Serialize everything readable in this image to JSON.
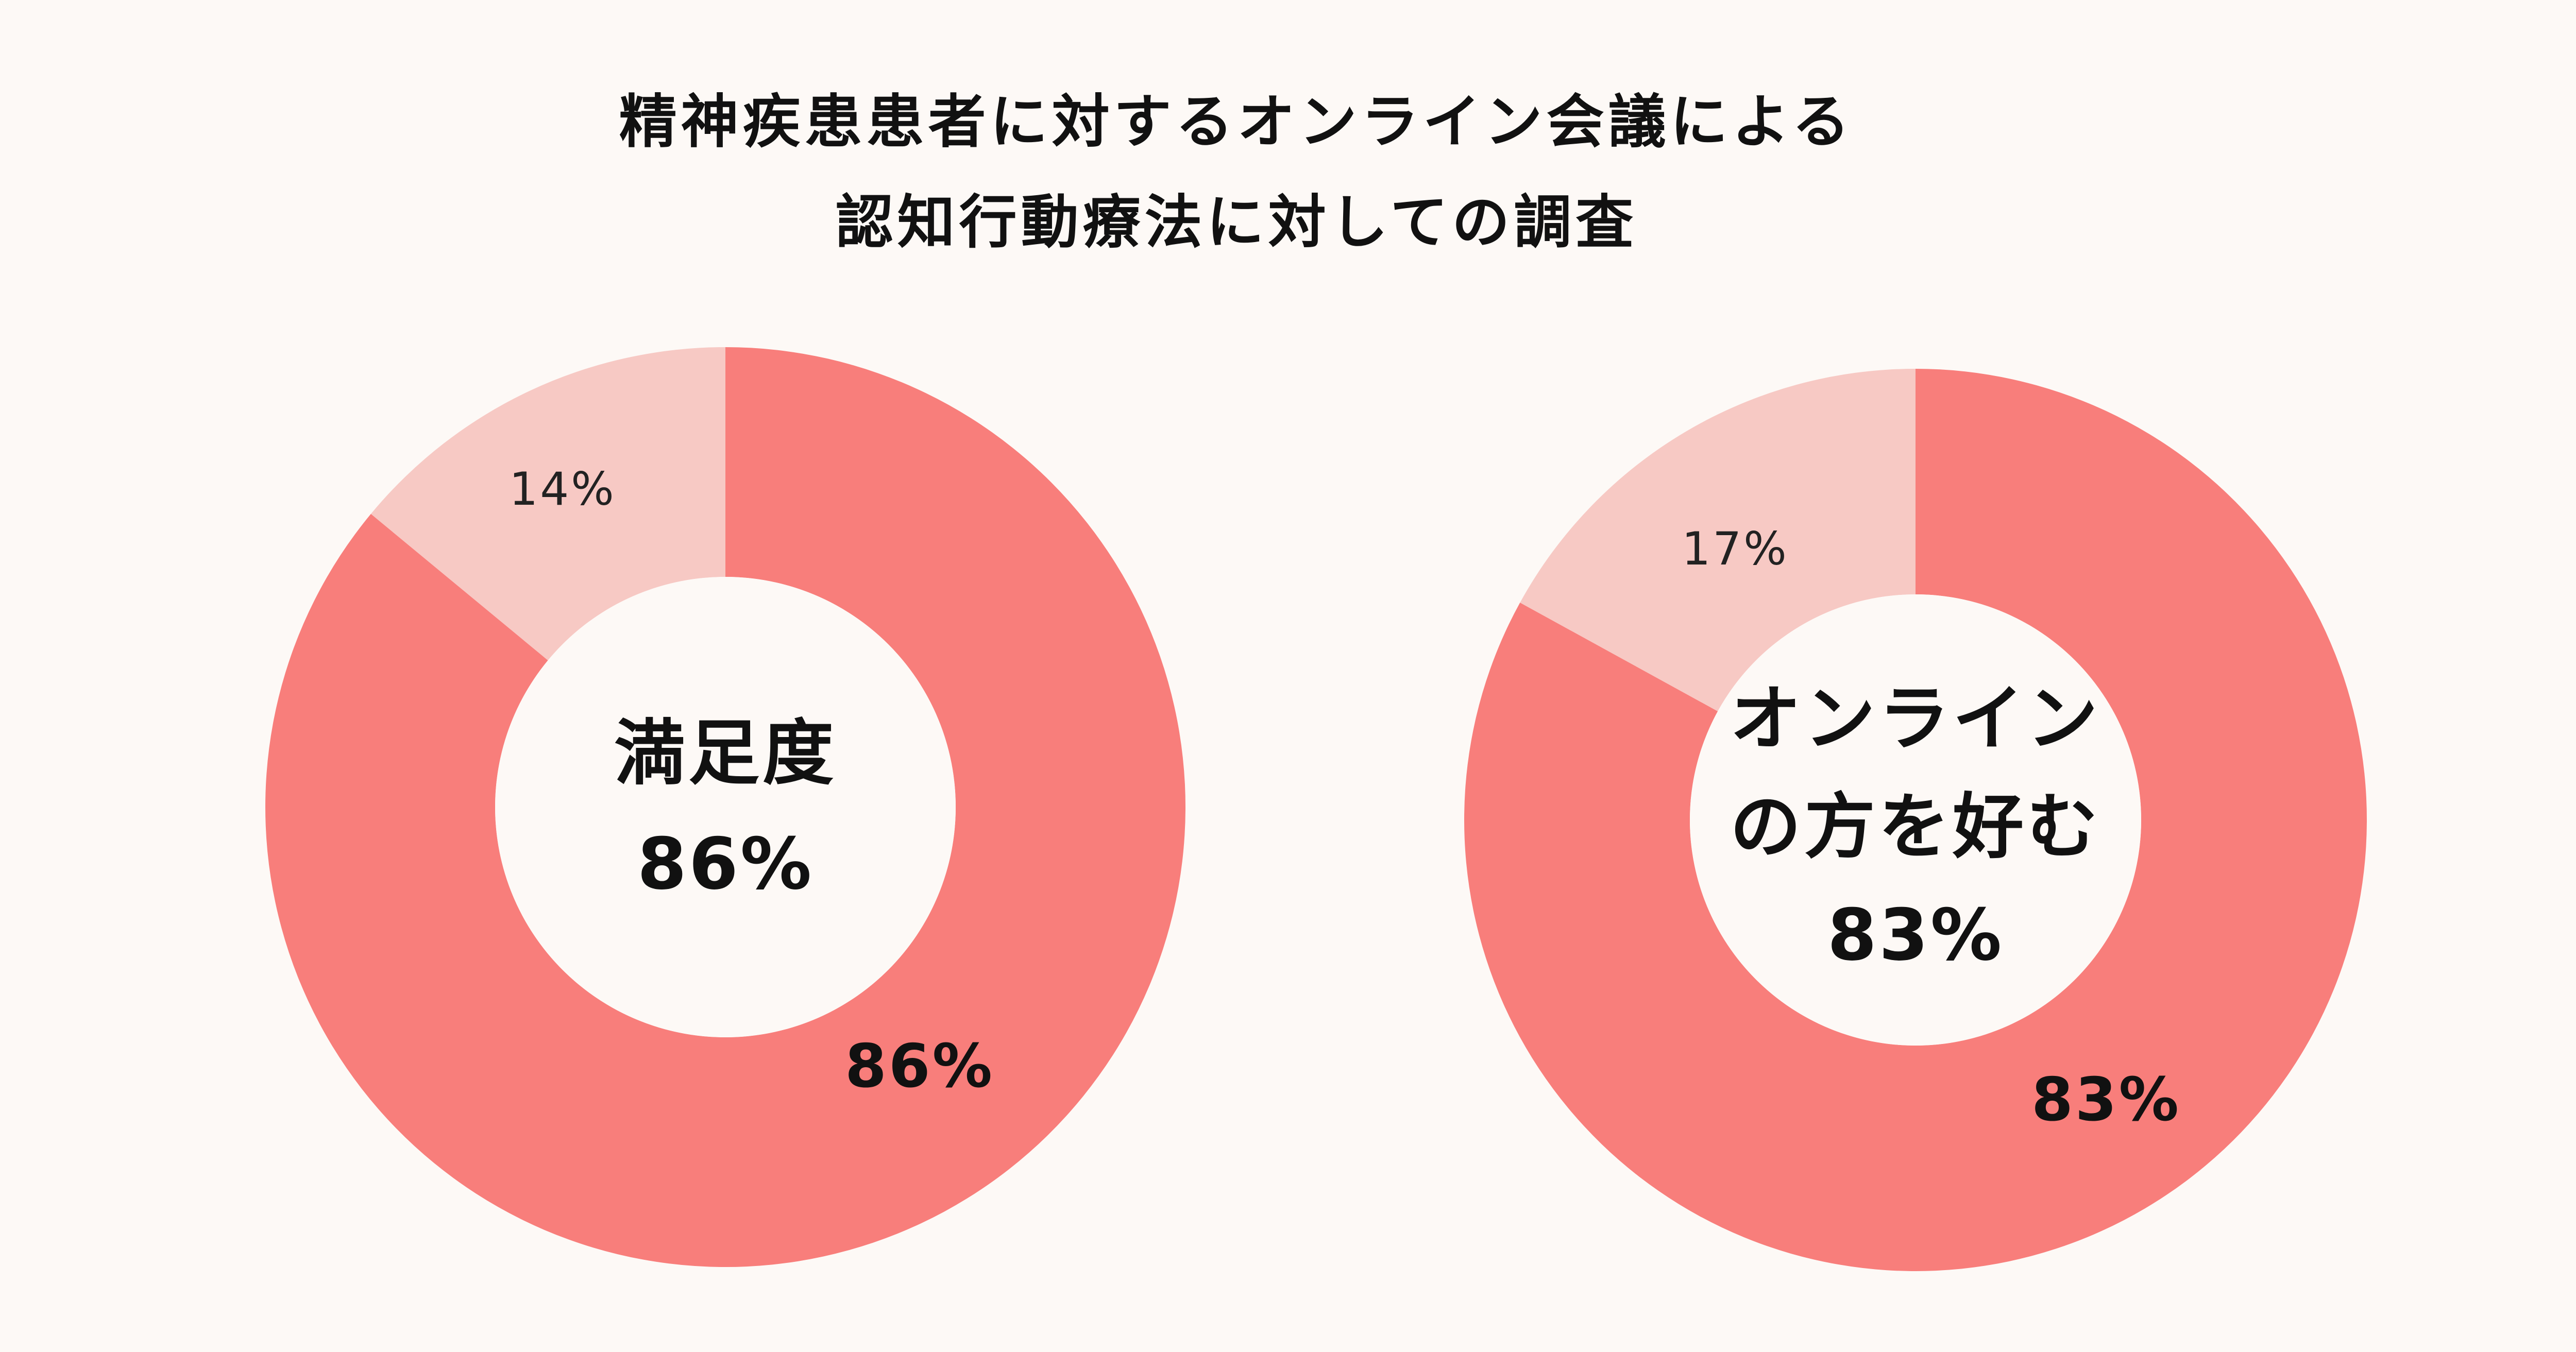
{
  "title_lines": [
    "精神疾患患者に対するオンライン会議による",
    "認知行動療法に対しての調査"
  ],
  "colors": {
    "background": "#fdf9f6",
    "major": "#f87e7b",
    "minor": "#f7c9c4",
    "hole": "#fdf9f6",
    "text": "#111111"
  },
  "chart_data": [
    {
      "type": "pie",
      "title": "",
      "center_label_lines": [
        "満足度",
        "86%"
      ],
      "slices": [
        {
          "label": "86%",
          "value": 86
        },
        {
          "label": "14%",
          "value": 14
        }
      ]
    },
    {
      "type": "pie",
      "title": "",
      "center_label_lines": [
        "オンライン",
        "の方を好む",
        "83%"
      ],
      "slices": [
        {
          "label": "83%",
          "value": 83
        },
        {
          "label": "17%",
          "value": 17
        }
      ]
    }
  ]
}
